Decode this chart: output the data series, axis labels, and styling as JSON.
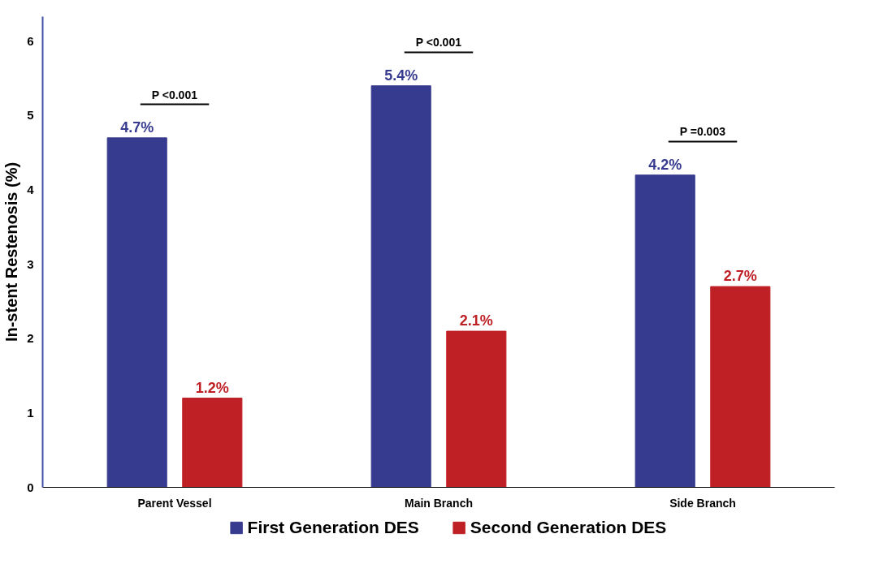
{
  "chart_data": {
    "type": "bar",
    "ylabel": "In-stent Restenosis (%)",
    "categories": [
      "Parent Vessel",
      "Main Branch",
      "Side Branch"
    ],
    "series": [
      {
        "name": "First Generation DES",
        "color": "#373b8f",
        "values": [
          4.7,
          5.4,
          4.2
        ],
        "value_labels": [
          "4.7%",
          "5.4%",
          "4.2%"
        ]
      },
      {
        "name": "Second Generation DES",
        "color": "#be2026",
        "values": [
          1.2,
          2.1,
          2.7
        ],
        "value_labels": [
          "1.2%",
          "2.1%",
          "2.7%"
        ]
      }
    ],
    "ylim": [
      0,
      6.33
    ],
    "yticks": [
      0,
      1,
      2,
      3,
      4,
      5,
      6
    ],
    "annotations": [
      "P <0.001",
      "P <0.001",
      "P =0.003"
    ],
    "grid": false,
    "legend": "bottom"
  }
}
